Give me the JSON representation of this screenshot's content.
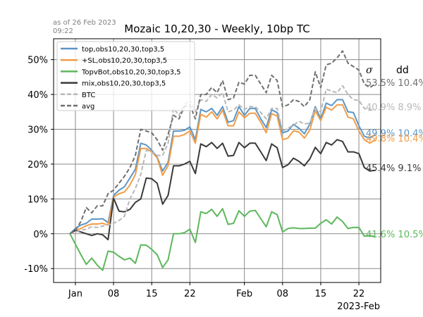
{
  "asof": {
    "line1": "as of 26 Feb 2023",
    "line2": "09:22"
  },
  "chart_data": {
    "type": "line",
    "title": "Mozaic 10,20,30 - Weekly, 10bp TC",
    "xlabel": "",
    "ylabel": "",
    "ylim": [
      -14,
      56
    ],
    "x_range": [
      "2022-12-28",
      "2023-02-26"
    ],
    "x_offset_label": "2023-Feb",
    "x_ticks": [
      {
        "label": "Jan",
        "date": "2023-01-01"
      },
      {
        "label": "08",
        "date": "2023-01-08"
      },
      {
        "label": "15",
        "date": "2023-01-15"
      },
      {
        "label": "22",
        "date": "2023-01-22"
      },
      {
        "label": "Feb",
        "date": "2023-02-01"
      },
      {
        "label": "08",
        "date": "2023-02-08"
      },
      {
        "label": "15",
        "date": "2023-02-15"
      },
      {
        "label": "22",
        "date": "2023-02-22"
      }
    ],
    "y_ticks": [
      {
        "label": "-10%",
        "value": -10
      },
      {
        "label": "0%",
        "value": 0
      },
      {
        "label": "10%",
        "value": 10
      },
      {
        "label": "20%",
        "value": 20
      },
      {
        "label": "30%",
        "value": 30
      },
      {
        "label": "40%",
        "value": 40
      },
      {
        "label": "50%",
        "value": 50
      }
    ],
    "grid": true,
    "legend_position": "top-left",
    "stats_headers": {
      "sigma": "σ",
      "dd": "dd"
    },
    "dates": [
      "2022-12-31",
      "2023-01-01",
      "2023-01-02",
      "2023-01-03",
      "2023-01-04",
      "2023-01-05",
      "2023-01-06",
      "2023-01-07",
      "2023-01-08",
      "2023-01-09",
      "2023-01-10",
      "2023-01-11",
      "2023-01-12",
      "2023-01-13",
      "2023-01-14",
      "2023-01-15",
      "2023-01-16",
      "2023-01-17",
      "2023-01-18",
      "2023-01-19",
      "2023-01-20",
      "2023-01-21",
      "2023-01-22",
      "2023-01-23",
      "2023-01-24",
      "2023-01-25",
      "2023-01-26",
      "2023-01-27",
      "2023-01-28",
      "2023-01-29",
      "2023-01-30",
      "2023-01-31",
      "2023-02-01",
      "2023-02-02",
      "2023-02-03",
      "2023-02-04",
      "2023-02-05",
      "2023-02-06",
      "2023-02-07",
      "2023-02-08",
      "2023-02-09",
      "2023-02-10",
      "2023-02-11",
      "2023-02-12",
      "2023-02-13",
      "2023-02-14",
      "2023-02-15",
      "2023-02-16",
      "2023-02-17",
      "2023-02-18",
      "2023-02-19",
      "2023-02-20",
      "2023-02-21",
      "2023-02-22",
      "2023-02-23",
      "2023-02-24",
      "2023-02-25",
      "2023-02-26"
    ],
    "series": [
      {
        "name": "top,obs10,20,30,top3,5",
        "color": "#5b96c8",
        "dash": "solid",
        "width": 2,
        "stat_label": "49.9%  10.4%",
        "stat_y": 29,
        "values": [
          0,
          1.5,
          2.5,
          3,
          4.2,
          4.2,
          4.3,
          3.2,
          11,
          12.5,
          13.5,
          16,
          18.5,
          26,
          25.5,
          24,
          22,
          18,
          20.5,
          29.5,
          29.5,
          29.7,
          30.7,
          27,
          35.7,
          35,
          36,
          34,
          36.5,
          32,
          32.5,
          36.5,
          34,
          36,
          36,
          33,
          30.5,
          35.6,
          34.8,
          29,
          29.5,
          31.4,
          30.3,
          28.7,
          31.5,
          36.5,
          33,
          37.5,
          36.8,
          38.5,
          38.5,
          35,
          34.8,
          31,
          28,
          27.5,
          28.5,
          null
        ]
      },
      {
        "name": "+SL,obs10,20,30,top3,5",
        "color": "#f29d48",
        "dash": "solid",
        "width": 2,
        "stat_label": "49.8%  10.4%",
        "stat_y": 27.5,
        "values": [
          0,
          1,
          1.5,
          2.3,
          2.8,
          2.8,
          3,
          2.5,
          10.5,
          11.5,
          12,
          14,
          17,
          24.5,
          24.5,
          23.5,
          21.8,
          16.8,
          19.5,
          28,
          28,
          28.5,
          29.5,
          26,
          34.3,
          33.5,
          35,
          33,
          35.5,
          31,
          31,
          35,
          33.3,
          34.6,
          34.6,
          32,
          29,
          34.5,
          33.8,
          27,
          27.5,
          29.6,
          29.2,
          27.5,
          29.8,
          35.3,
          32.5,
          36.3,
          35.5,
          37,
          37,
          33.5,
          33,
          29.5,
          27,
          26,
          27,
          null
        ]
      },
      {
        "name": "TopvBot,obs10,20,30,top3,5",
        "color": "#5cb85c",
        "dash": "solid",
        "width": 2,
        "stat_label": "41.6%  10.5%",
        "stat_y": 0,
        "values": [
          0,
          -3,
          -6,
          -8.8,
          -7,
          -9,
          -10.5,
          -5,
          -5.3,
          -6.5,
          -7.5,
          -7,
          -8.5,
          -3.2,
          -3.3,
          -4.5,
          -6,
          -9.7,
          -7.5,
          0,
          0,
          0.3,
          1.3,
          -2.5,
          6.3,
          5.8,
          7,
          5,
          7.2,
          2.7,
          3,
          6.6,
          5,
          6.5,
          6.7,
          4.3,
          2,
          6.3,
          5.5,
          0.5,
          1.5,
          1.7,
          1.5,
          1.5,
          1.6,
          1.6,
          3,
          4,
          2.8,
          4.8,
          3.5,
          1.5,
          1.8,
          1.8,
          -0.7,
          -0.6,
          -0.8,
          null
        ]
      },
      {
        "name": "mix,obs10,20,30,top3,5",
        "color": "#3a3a3a",
        "dash": "solid",
        "width": 2,
        "stat_label": "45.4%  9.1%",
        "stat_y": 19,
        "values": [
          0,
          1,
          0.5,
          0,
          -0.5,
          0,
          -0.3,
          -1.7,
          10.2,
          6.5,
          6.3,
          7,
          9,
          10,
          16,
          15.8,
          14.5,
          8.5,
          11,
          19.5,
          19.5,
          20,
          20.8,
          17.3,
          25.8,
          25,
          26.2,
          24.5,
          26,
          22.3,
          22.5,
          26.2,
          24.7,
          26,
          26,
          23.5,
          21,
          25.8,
          24.7,
          19,
          19.8,
          21.7,
          20.8,
          19.5,
          21.5,
          24.8,
          23,
          26.2,
          25.5,
          27,
          26.5,
          23.5,
          23.5,
          23,
          19,
          18,
          18.2,
          null
        ]
      },
      {
        "name": "BTC",
        "color": "#b8b8b8",
        "dash": "dashed",
        "width": 2,
        "stat_label": "40.9%  8.9%",
        "stat_y": 36.5,
        "values": [
          0,
          0.5,
          1,
          1.3,
          2,
          1.8,
          2.2,
          2.5,
          3,
          3.8,
          5,
          10,
          13,
          17,
          24,
          23.5,
          22.5,
          22.5,
          26,
          36,
          34,
          37,
          38.5,
          35,
          38.5,
          38,
          40,
          39,
          40.5,
          35,
          35.5,
          37,
          35.7,
          36.5,
          36.5,
          34.8,
          33,
          36,
          36,
          29.5,
          30.3,
          31.2,
          32.3,
          31.5,
          31.8,
          36,
          35,
          41.5,
          41,
          40.5,
          42.5,
          40,
          38.5,
          38.3,
          36,
          35.5,
          35.5,
          null
        ]
      },
      {
        "name": "avg",
        "color": "#707070",
        "dash": "dashed",
        "width": 2,
        "stat_label": "53.5%  10.4%",
        "stat_y": 43.5,
        "values": [
          0,
          1,
          3.5,
          7.5,
          6,
          8,
          8,
          11.5,
          12.5,
          14.5,
          16.5,
          19,
          22.5,
          30,
          29.5,
          29,
          27,
          24,
          28.5,
          34,
          33,
          36.5,
          37,
          33,
          40,
          40,
          42,
          40.5,
          44,
          38.5,
          39,
          43.5,
          43,
          45.5,
          45.5,
          43,
          40.5,
          45.5,
          44,
          36.5,
          37,
          38.5,
          38,
          36.5,
          38.5,
          46.5,
          42,
          48.5,
          49,
          50.5,
          52.5,
          49,
          48,
          47,
          43,
          42,
          43,
          null
        ]
      }
    ]
  }
}
